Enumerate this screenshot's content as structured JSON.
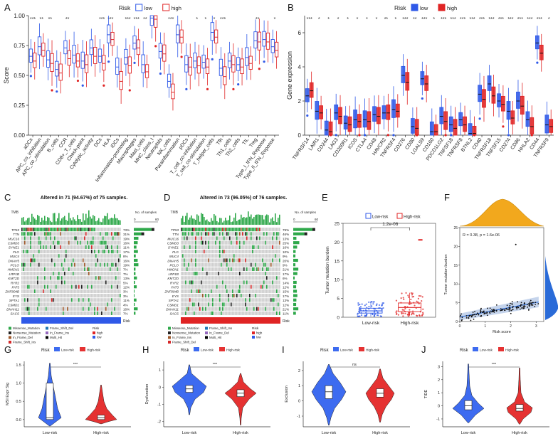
{
  "colors": {
    "low": "#2f59e8",
    "high": "#e02424",
    "low_fill": "#3d6bf0",
    "high_fill": "#e53232",
    "green": "#2ea84a",
    "gray": "#cfcfcf",
    "orange": "#f2a81d",
    "blueDens": "#2a6bd8"
  },
  "panels": {
    "A": "A",
    "B": "B",
    "C": "C",
    "D": "D",
    "E": "E",
    "F": "F",
    "G": "G",
    "H": "H",
    "I": "I",
    "J": "J"
  },
  "chart_data": [
    {
      "id": "A",
      "type": "box",
      "legend_title": "Risk",
      "legend": [
        "low",
        "high"
      ],
      "ylabel": "Score",
      "ylim": [
        0,
        1.0
      ],
      "yticks": [
        "0.00",
        "0.25",
        "0.50",
        "0.75",
        "1.00"
      ],
      "categories": [
        "aDCs",
        "APC_co_inhibition",
        "APC_co_stimulation",
        "B_cells",
        "CCR",
        "CD8+_T_cells",
        "Check-point",
        "Cytolytic_activity",
        "DCs",
        "HLA",
        "iDCs",
        "Inflammation-promoting",
        "Macrophages",
        "Mast_cells",
        "MHC_class_I",
        "Neutrophils",
        "NK_cells",
        "Parainflammation",
        "pDCs",
        "T_cell_co-inhibition",
        "T_cell_co-stimulation",
        "T_helper_cells",
        "Tfh",
        "Th1_cells",
        "Th2_cells",
        "TIL",
        "Treg",
        "Type_I_IFN_Reponse",
        "Type_II_IFN_Reponse"
      ],
      "signif": [
        "***",
        "**",
        "**",
        "",
        "**",
        "",
        "",
        "",
        "***",
        "***",
        "",
        "***",
        "***",
        "**",
        "",
        "",
        "***",
        "",
        "",
        "*",
        "*",
        "*",
        "***",
        "",
        "",
        "",
        "**",
        "",
        "*"
      ],
      "series": [
        {
          "name": "low",
          "median": [
            0.66,
            0.74,
            0.63,
            0.55,
            0.73,
            0.67,
            0.62,
            0.73,
            0.66,
            0.84,
            0.57,
            0.65,
            0.77,
            0.59,
            0.98,
            0.7,
            0.45,
            0.84,
            0.59,
            0.62,
            0.61,
            0.86,
            0.56,
            0.62,
            0.59,
            0.65,
            0.79,
            0.8,
            0.74
          ]
        },
        {
          "name": "high",
          "median": [
            0.62,
            0.71,
            0.6,
            0.52,
            0.64,
            0.62,
            0.59,
            0.66,
            0.6,
            0.8,
            0.45,
            0.58,
            0.73,
            0.53,
            0.97,
            0.68,
            0.36,
            0.82,
            0.57,
            0.58,
            0.57,
            0.82,
            0.49,
            0.59,
            0.57,
            0.6,
            0.78,
            0.78,
            0.71
          ]
        }
      ]
    },
    {
      "id": "B",
      "type": "box",
      "legend_title": "Risk",
      "legend": [
        "low",
        "high"
      ],
      "ylabel": "Gene expression",
      "ylim": [
        0,
        7
      ],
      "yticks": [
        "0",
        "2",
        "4",
        "6"
      ],
      "categories": [
        "TNFRSF14",
        "LAIR1",
        "CD244",
        "LAG3",
        "CD200R1",
        "ICOS",
        "CTLA4",
        "CD48",
        "HAVCR2",
        "TNFRSF4",
        "CD276",
        "CD80",
        "LGALS9",
        "CD160",
        "PDCD1LG2",
        "TNFSF18",
        "TNFRSF8",
        "BTNL2",
        "CD40",
        "TNFRSF18",
        "TNFSF15",
        "CD274",
        "CD86",
        "HHLA2",
        "CD44",
        "TNFRSF9"
      ],
      "signif": [
        "***",
        "*",
        "*",
        "*",
        "*",
        "*",
        "*",
        "*",
        "**",
        "*",
        "***",
        "**",
        "***",
        "*",
        "***",
        "***",
        "***",
        "***",
        "***",
        "***",
        "***",
        "***",
        "***",
        "***",
        "***",
        "*"
      ],
      "series": [
        {
          "name": "low",
          "median": [
            2.3,
            1.4,
            0.3,
            1.3,
            0.7,
            0.9,
            0.9,
            1.2,
            1.3,
            1.5,
            3.5,
            0.5,
            3.3,
            0.2,
            1.1,
            0.6,
            0.9,
            0.1,
            2.4,
            3.0,
            2.0,
            1.4,
            2.0,
            0.9,
            5.4,
            0.6
          ]
        },
        {
          "name": "high",
          "median": [
            2.6,
            1.3,
            0.2,
            1.1,
            0.6,
            0.8,
            0.8,
            1.1,
            1.3,
            1.4,
            3.1,
            0.4,
            3.0,
            0.2,
            0.8,
            0.4,
            0.6,
            0.1,
            2.1,
            2.3,
            1.8,
            1.0,
            1.7,
            0.5,
            4.8,
            0.5
          ]
        }
      ]
    },
    {
      "id": "C",
      "type": "oncoplot",
      "title": "Altered in 71 (94.67%) of 75 samples.",
      "tmb_label": "TMB",
      "nsamples_label": "No. of samples",
      "axis_ticks": [
        "0",
        "60"
      ],
      "genes": [
        "TP53",
        "TTN",
        "MUC16",
        "CSMD3",
        "SYNE1",
        "FLG",
        "MUC4",
        "DNAH5",
        "PCLO",
        "HMCN1",
        "LRP1B",
        "KMT2D",
        "RYR2",
        "FAT3",
        "ZNF804B",
        "EYS",
        "SPTA1",
        "CSMD1",
        "DNAH11",
        "SACS"
      ],
      "percent": [
        "73%",
        "31%",
        "19%",
        "16%",
        "11%",
        "17%",
        "8%",
        "16%",
        "19%",
        "7%",
        "7%",
        "13%",
        "5%",
        "12%",
        "3%",
        "3%",
        "11%",
        "4%",
        "16%",
        "7%"
      ],
      "risk_label": "Risk",
      "group": "low",
      "legend": {
        "items": [
          "Missense_Mutation",
          "Nonsense_Mutation",
          "In_Frame_Del",
          "Frame_Shift_Ins",
          "Frame_Shift_Del",
          "In_Frame_Ins",
          "Multi_Hit"
        ],
        "risk_title": "Risk",
        "risk_items": [
          "high",
          "low"
        ]
      }
    },
    {
      "id": "D",
      "type": "oncoplot",
      "title": "Altered in 73 (96.05%) of 76 samples.",
      "tmb_label": "TMB",
      "nsamples_label": "No. of samples",
      "axis_ticks": [
        "0",
        "60"
      ],
      "genes": [
        "TP53",
        "TTN",
        "MUC16",
        "CSMD3",
        "SYNE1",
        "FLG",
        "MUC4",
        "DNAH5",
        "PCLO",
        "HMCN1",
        "LRP1B",
        "KMT2D",
        "RYR2",
        "FAT3",
        "ZNF804B",
        "EYS",
        "SPTA1",
        "CSMD1",
        "DNAH11",
        "SACS"
      ],
      "percent": [
        "79%",
        "46%",
        "13%",
        "25%",
        "16%",
        "10%",
        "9%",
        "20%",
        "9%",
        "21%",
        "17%",
        "6%",
        "14%",
        "12%",
        "15%",
        "17%",
        "13%",
        "12%",
        "21%",
        "11%"
      ],
      "risk_label": "Risk",
      "group": "high",
      "legend": {
        "items": [
          "Missense_Mutation",
          "Nonsense_Mutation",
          "In_Frame_Ins",
          "Frame_Shift_Del",
          "Frame_Shift_Ins",
          "In_Frame_Del",
          "Multi_Hit"
        ],
        "risk_title": "Risk",
        "risk_items": [
          "high",
          "low"
        ]
      }
    },
    {
      "id": "E",
      "type": "box",
      "legend": [
        "Low-risk",
        "High-risk"
      ],
      "ylabel": "Tumor mutation burden",
      "ylim": [
        0,
        25
      ],
      "yticks": [
        "0",
        "5",
        "10",
        "15",
        "20",
        "25"
      ],
      "categories": [
        "Low-risk",
        "High-risk"
      ],
      "pvalue": "1.2e-06",
      "median": [
        1.7,
        2.6
      ],
      "q1": [
        1.1,
        1.5
      ],
      "q3": [
        2.4,
        3.8
      ],
      "min": [
        0.2,
        0.3
      ],
      "max": [
        4.2,
        6.5
      ],
      "outlier_high": [
        null,
        20.6
      ]
    },
    {
      "id": "F",
      "type": "scatter",
      "annotation": "R = 0.38, p = 1.6e-06",
      "xlabel": "Risk score",
      "ylabel": "Tumor mutation burden",
      "xticks": [
        "0",
        "1",
        "2",
        "3"
      ],
      "yticks": [
        "0",
        "5",
        "10",
        "15",
        "20",
        "25"
      ],
      "xlim": [
        0,
        3.3
      ],
      "ylim": [
        0,
        25
      ],
      "fit": {
        "x": [
          0,
          3.1
        ],
        "y": [
          1.2,
          5.2
        ]
      }
    },
    {
      "id": "G",
      "type": "violin",
      "legend_title": "Risk",
      "legend": [
        "Low-risk",
        "High-risk"
      ],
      "ylabel": "MSI Expr Sig",
      "yticks": [
        "0.0",
        "0.5",
        "1.0",
        "1.5"
      ],
      "ylim": [
        -0.2,
        1.6
      ],
      "categories": [
        "Low-risk",
        "High-risk"
      ],
      "signif": "***",
      "median": [
        0.05,
        0.05
      ],
      "q1": [
        0.0,
        0.0
      ],
      "q3": [
        1.0,
        0.12
      ]
    },
    {
      "id": "H",
      "type": "violin",
      "legend_title": "Risk",
      "legend": [
        "Low-risk",
        "High-risk"
      ],
      "ylabel": "Dysfunction",
      "yticks": [
        "-2",
        "-1",
        "0",
        "1"
      ],
      "ylim": [
        -2.3,
        1.5
      ],
      "categories": [
        "Low-risk",
        "High-risk"
      ],
      "signif": "***",
      "median": [
        -0.1,
        -0.35
      ],
      "q1": [
        -0.3,
        -0.55
      ],
      "q3": [
        0.1,
        -0.15
      ]
    },
    {
      "id": "I",
      "type": "violin",
      "legend_title": "Risk",
      "legend": [
        "Low-risk",
        "High-risk"
      ],
      "ylabel": "Exclusion",
      "yticks": [
        "-1",
        "0",
        "1",
        "2"
      ],
      "ylim": [
        -1.7,
        2.6
      ],
      "categories": [
        "Low-risk",
        "High-risk"
      ],
      "signif": "ns",
      "median": [
        0.6,
        0.5
      ],
      "q1": [
        0.15,
        0.25
      ],
      "q3": [
        1.0,
        0.8
      ]
    },
    {
      "id": "J",
      "type": "violin",
      "legend_title": "Risk",
      "legend": [
        "Low-risk",
        "High-risk"
      ],
      "ylabel": "TIDE",
      "yticks": [
        "-1",
        "0",
        "1",
        "2",
        "3"
      ],
      "ylim": [
        -1.6,
        3.4
      ],
      "categories": [
        "Low-risk",
        "High-risk"
      ],
      "signif": "***",
      "median": [
        0.0,
        -0.2
      ],
      "q1": [
        -0.3,
        -0.4
      ],
      "q3": [
        0.4,
        0.1
      ]
    }
  ]
}
